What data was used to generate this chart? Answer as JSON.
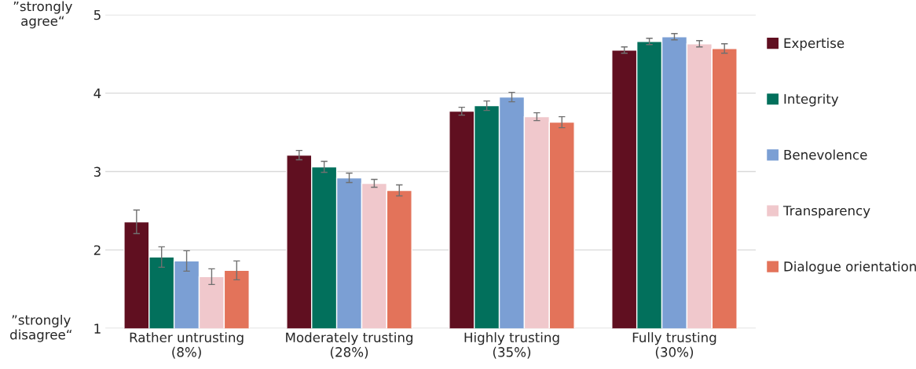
{
  "chart_data": {
    "type": "bar",
    "categories": [
      "Rather untrusting\n(8%)",
      "Moderately trusting\n(28%)",
      "Highly trusting\n(35%)",
      "Fully trusting\n(30%)"
    ],
    "series": [
      {
        "name": "Expertise",
        "color": "#600f20",
        "values": [
          2.36,
          3.21,
          3.77,
          4.55
        ],
        "errors": [
          0.15,
          0.06,
          0.05,
          0.04
        ]
      },
      {
        "name": "Integrity",
        "color": "#02705c",
        "values": [
          1.91,
          3.06,
          3.84,
          4.66
        ],
        "errors": [
          0.13,
          0.07,
          0.06,
          0.04
        ]
      },
      {
        "name": "Benevolence",
        "color": "#7b9fd4",
        "values": [
          1.86,
          2.92,
          3.95,
          4.72
        ],
        "errors": [
          0.13,
          0.06,
          0.06,
          0.04
        ]
      },
      {
        "name": "Transparency",
        "color": "#f0c8cc",
        "values": [
          1.66,
          2.85,
          3.7,
          4.63
        ],
        "errors": [
          0.1,
          0.05,
          0.05,
          0.04
        ]
      },
      {
        "name": "Dialogue orientation",
        "color": "#e3735a",
        "values": [
          1.74,
          2.76,
          3.63,
          4.57
        ],
        "errors": [
          0.12,
          0.07,
          0.07,
          0.06
        ]
      }
    ],
    "ylim": [
      1,
      5
    ],
    "yticks": [
      1,
      2,
      3,
      4,
      5
    ],
    "grid": "y",
    "legend": "right",
    "annotations": [
      "”strongly\nagree“",
      "”strongly\ndisagree“"
    ]
  }
}
